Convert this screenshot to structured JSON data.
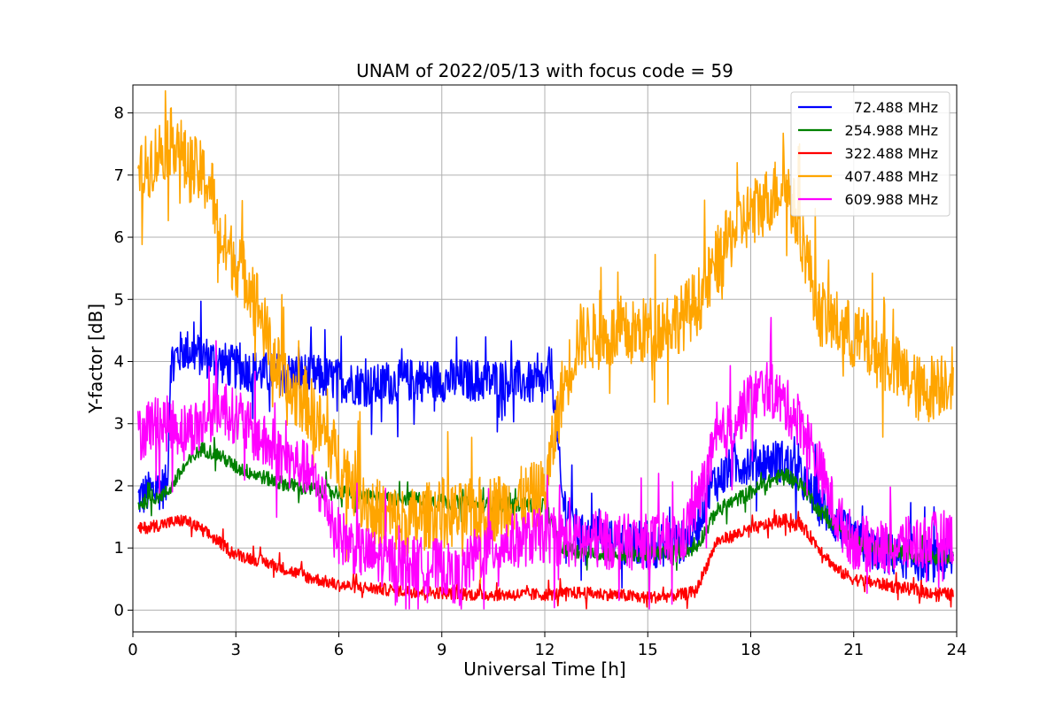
{
  "chart_data": {
    "type": "line",
    "title": "UNAM of 2022/05/13 with focus code = 59",
    "xlabel": "Universal Time [h]",
    "ylabel": "Y-factor [dB]",
    "xlim": [
      0,
      24
    ],
    "ylim": [
      -0.35,
      8.45
    ],
    "xticks": [
      0,
      3,
      6,
      9,
      12,
      15,
      18,
      21,
      24
    ],
    "yticks": [
      0,
      1,
      2,
      3,
      4,
      5,
      6,
      7,
      8
    ],
    "xtick_labels": [
      "0",
      "3",
      "6",
      "9",
      "12",
      "15",
      "18",
      "21",
      "24"
    ],
    "ytick_labels": [
      "0",
      "1",
      "2",
      "3",
      "4",
      "5",
      "6",
      "7",
      "8"
    ],
    "grid": true,
    "legend": "top-right",
    "series": [
      {
        "name": "72.488 MHz",
        "color": "#0000ff",
        "noise": 0.35,
        "x": [
          0.15,
          0.5,
          1.0,
          1.1,
          1.5,
          2.0,
          2.5,
          3.0,
          4.0,
          5.0,
          6.0,
          7.0,
          8.0,
          9.0,
          10.0,
          11.0,
          12.0,
          12.2,
          12.5,
          13.0,
          14.0,
          15.0,
          16.0,
          16.4,
          16.8,
          17.5,
          18.0,
          18.5,
          19.0,
          19.5,
          20.0,
          20.5,
          21.0,
          22.0,
          23.0,
          23.9
        ],
        "y": [
          1.8,
          1.9,
          2.0,
          4.0,
          4.2,
          4.1,
          4.0,
          3.9,
          3.8,
          3.8,
          3.7,
          3.6,
          3.7,
          3.7,
          3.7,
          3.7,
          3.6,
          3.9,
          1.8,
          1.2,
          1.1,
          1.0,
          1.1,
          1.3,
          2.0,
          2.3,
          2.4,
          2.4,
          2.4,
          2.1,
          1.7,
          1.4,
          1.1,
          0.9,
          0.8,
          0.8
        ]
      },
      {
        "name": "254.988 MHz",
        "color": "#008000",
        "noise": 0.12,
        "x": [
          0.15,
          1.0,
          1.5,
          2.0,
          2.5,
          3.0,
          4.0,
          5.0,
          6.0,
          7.0,
          8.0,
          9.0,
          10.0,
          11.0,
          12.0,
          12.5,
          13.0,
          14.0,
          15.0,
          16.0,
          16.4,
          17.0,
          18.0,
          19.0,
          19.5,
          20.0,
          20.5,
          21.0,
          22.0,
          23.0,
          23.9
        ],
        "y": [
          1.7,
          1.9,
          2.3,
          2.6,
          2.5,
          2.3,
          2.1,
          1.95,
          1.9,
          1.8,
          1.8,
          1.75,
          1.7,
          1.7,
          1.7,
          1.0,
          0.95,
          0.9,
          0.9,
          0.95,
          1.0,
          1.6,
          1.9,
          2.2,
          2.0,
          1.6,
          1.3,
          1.1,
          0.95,
          0.9,
          0.85
        ]
      },
      {
        "name": "322.488 MHz",
        "color": "#ff0000",
        "noise": 0.1,
        "x": [
          0.15,
          1.0,
          1.5,
          2.0,
          2.5,
          3.0,
          4.0,
          5.0,
          6.0,
          7.0,
          8.0,
          9.0,
          10.0,
          11.0,
          12.0,
          13.0,
          14.0,
          15.0,
          16.0,
          16.4,
          17.0,
          18.0,
          19.0,
          19.5,
          20.0,
          20.5,
          21.0,
          22.0,
          23.0,
          23.9
        ],
        "y": [
          1.3,
          1.4,
          1.45,
          1.3,
          1.1,
          0.9,
          0.75,
          0.55,
          0.4,
          0.35,
          0.3,
          0.28,
          0.25,
          0.25,
          0.25,
          0.28,
          0.25,
          0.2,
          0.25,
          0.3,
          1.1,
          1.3,
          1.45,
          1.35,
          1.0,
          0.65,
          0.5,
          0.4,
          0.3,
          0.25
        ]
      },
      {
        "name": "407.488 MHz",
        "color": "#ffa500",
        "noise": 0.55,
        "x": [
          0.15,
          0.5,
          1.0,
          1.3,
          1.5,
          2.0,
          2.3,
          2.5,
          3.0,
          3.5,
          4.0,
          4.5,
          5.0,
          5.5,
          6.0,
          6.5,
          7.0,
          8.0,
          9.0,
          9.5,
          10.0,
          11.0,
          12.0,
          12.5,
          13.0,
          14.0,
          15.0,
          16.0,
          16.5,
          17.0,
          17.5,
          18.0,
          18.5,
          19.0,
          19.5,
          20.0,
          21.0,
          22.0,
          23.0,
          23.9
        ],
        "y": [
          6.9,
          7.2,
          7.5,
          7.6,
          7.2,
          7.0,
          6.8,
          6.0,
          5.6,
          5.2,
          4.2,
          3.5,
          3.4,
          2.9,
          2.4,
          2.0,
          1.6,
          1.4,
          1.6,
          1.5,
          1.6,
          1.7,
          1.9,
          3.5,
          4.4,
          4.4,
          4.5,
          4.7,
          5.0,
          5.6,
          6.1,
          6.4,
          6.6,
          6.9,
          6.0,
          4.8,
          4.4,
          4.0,
          3.5,
          3.8
        ]
      },
      {
        "name": "609.988 MHz",
        "color": "#ff00ff",
        "noise": 0.45,
        "x": [
          0.15,
          0.5,
          1.0,
          1.5,
          2.0,
          2.5,
          3.0,
          4.0,
          4.5,
          5.0,
          5.5,
          6.0,
          6.5,
          7.0,
          8.0,
          9.0,
          9.5,
          10.0,
          11.0,
          12.0,
          13.0,
          14.0,
          15.0,
          16.0,
          16.5,
          17.0,
          17.5,
          18.0,
          18.5,
          19.0,
          19.5,
          20.0,
          20.5,
          21.0,
          22.0,
          23.0,
          23.9
        ],
        "y": [
          2.8,
          3.0,
          3.0,
          2.9,
          3.0,
          3.3,
          3.1,
          2.6,
          2.4,
          2.3,
          1.9,
          1.2,
          1.0,
          0.85,
          0.75,
          0.7,
          0.5,
          0.9,
          1.1,
          1.2,
          1.1,
          1.1,
          1.1,
          1.15,
          1.8,
          2.7,
          3.0,
          3.4,
          3.6,
          3.3,
          3.0,
          2.3,
          1.5,
          1.1,
          1.0,
          1.1,
          1.2
        ]
      }
    ]
  }
}
